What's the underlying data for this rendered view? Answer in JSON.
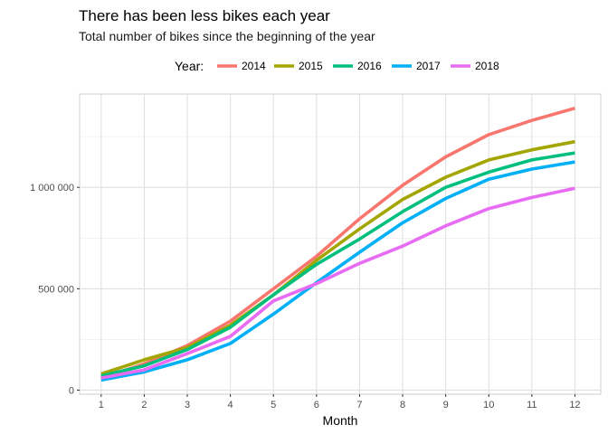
{
  "chart_data": {
    "type": "line",
    "title": "There has been less bikes each year",
    "subtitle": "Total number of bikes since the beginning of the year",
    "xlabel": "Month",
    "ylabel": "",
    "legend_title": "Year:",
    "legend_position": "top",
    "grid": true,
    "x": [
      1,
      2,
      3,
      4,
      5,
      6,
      7,
      8,
      9,
      10,
      11,
      12
    ],
    "x_tick_labels": [
      "1",
      "2",
      "3",
      "4",
      "5",
      "6",
      "7",
      "8",
      "9",
      "10",
      "11",
      "12"
    ],
    "y_ticks": [
      0,
      500000,
      1000000
    ],
    "y_tick_labels": [
      "0",
      "500 000",
      "1 000 000"
    ],
    "xlim": [
      0.5,
      12.6
    ],
    "ylim": [
      -20000,
      1460000
    ],
    "series": [
      {
        "name": "2014",
        "color": "#F8766D",
        "values": [
          60000,
          130000,
          220000,
          340000,
          500000,
          660000,
          845000,
          1010000,
          1150000,
          1260000,
          1330000,
          1390000
        ]
      },
      {
        "name": "2015",
        "color": "#A3A500",
        "values": [
          80000,
          150000,
          210000,
          320000,
          470000,
          640000,
          795000,
          940000,
          1050000,
          1135000,
          1185000,
          1225000
        ]
      },
      {
        "name": "2016",
        "color": "#00BF7D",
        "values": [
          70000,
          120000,
          200000,
          310000,
          470000,
          620000,
          745000,
          880000,
          1000000,
          1075000,
          1135000,
          1170000
        ]
      },
      {
        "name": "2017",
        "color": "#00B0F6",
        "values": [
          50000,
          90000,
          150000,
          230000,
          375000,
          530000,
          680000,
          825000,
          945000,
          1040000,
          1090000,
          1125000
        ]
      },
      {
        "name": "2018",
        "color": "#E76BF3",
        "values": [
          60000,
          100000,
          180000,
          265000,
          440000,
          525000,
          625000,
          710000,
          810000,
          895000,
          950000,
          995000
        ]
      }
    ]
  }
}
